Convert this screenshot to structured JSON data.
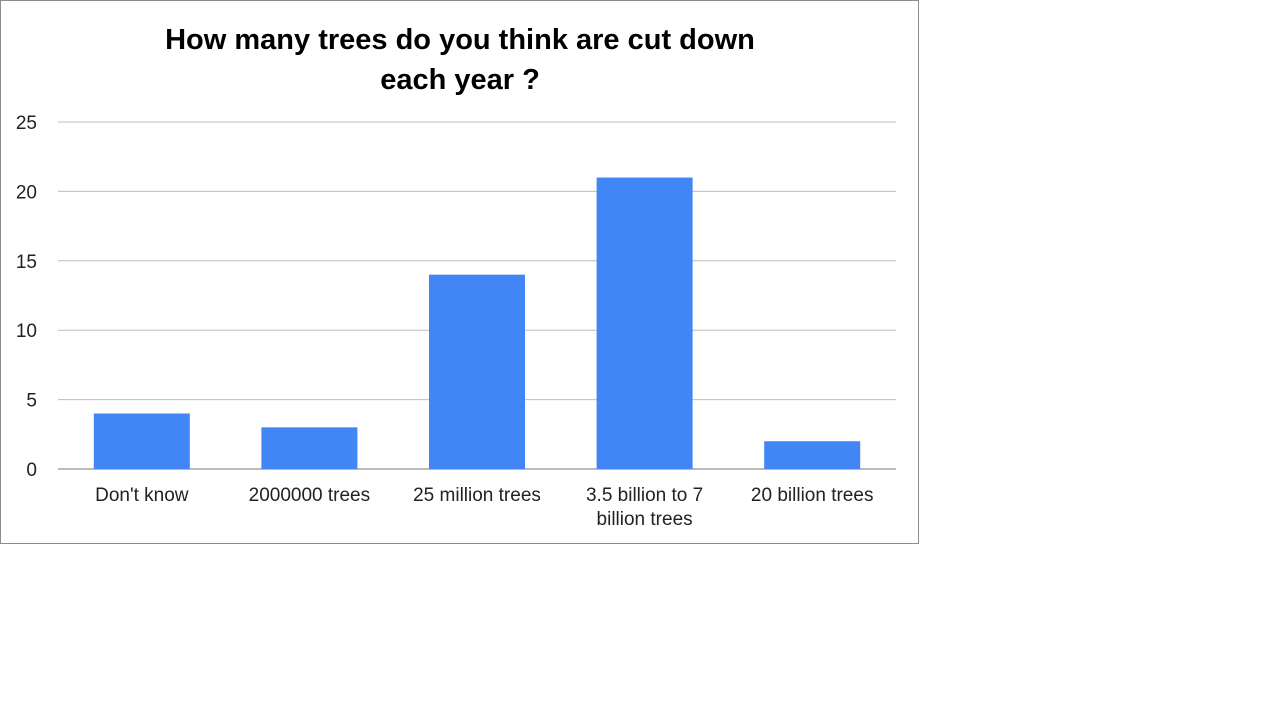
{
  "chart_data": {
    "type": "bar",
    "title": "How many trees do you think are cut down each year ?",
    "title_lines": [
      "How many trees do you think are cut down",
      "each year ?"
    ],
    "categories": [
      "Don't know",
      "2000000 trees",
      "25 million trees",
      "3.5 billion to 7 billion trees",
      "20 billion trees"
    ],
    "category_lines": [
      [
        "Don't know"
      ],
      [
        "2000000 trees"
      ],
      [
        "25 million trees"
      ],
      [
        "3.5 billion to 7",
        "billion trees"
      ],
      [
        "20 billion trees"
      ]
    ],
    "values": [
      4,
      3,
      14,
      21,
      2
    ],
    "ylim": [
      0,
      25
    ],
    "yticks": [
      "0",
      "5",
      "10",
      "15",
      "20",
      "25"
    ],
    "xlabel": "",
    "ylabel": "",
    "grid": true,
    "legend": "none",
    "bar_color": "#4285f4",
    "grid_color": "#bdbdbd"
  }
}
